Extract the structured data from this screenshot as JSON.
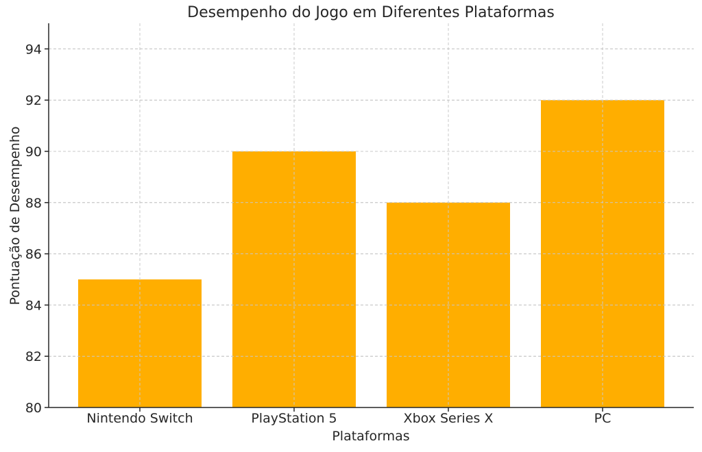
{
  "chart_data": {
    "type": "bar",
    "title": "Desempenho do Jogo em Diferentes Plataformas",
    "xlabel": "Plataformas",
    "ylabel": "Pontuação de Desempenho",
    "categories": [
      "Nintendo Switch",
      "PlayStation 5",
      "Xbox Series X",
      "PC"
    ],
    "values": [
      85,
      90,
      88,
      92
    ],
    "ylim": [
      80,
      95
    ],
    "yticks": [
      80,
      82,
      84,
      86,
      88,
      90,
      92,
      94
    ],
    "grid": true,
    "bar_color": "#FFAE00",
    "legend": "none"
  }
}
